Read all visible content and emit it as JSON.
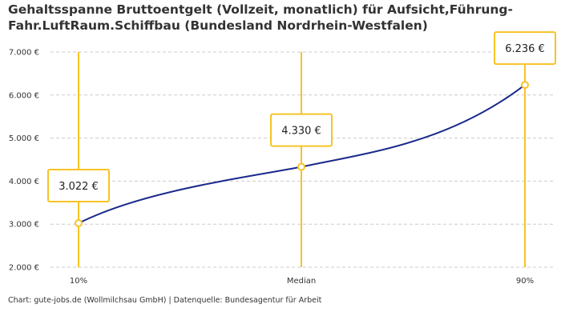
{
  "title": "Gehaltsspanne Bruttoentgelt (Vollzeit, monatlich) für Aufsicht,Führung-Fahr.LuftRaum.Schiffbau (Bundesland Nordrhein-Westfalen)",
  "footer": "Chart: gute-jobs.de (Wollmilchsau GmbH) | Datenquelle: Bundesagentur für Arbeit",
  "chart_data": {
    "type": "line",
    "title": "Gehaltsspanne Bruttoentgelt (Vollzeit, monatlich) für Aufsicht,Führung-Fahr.LuftRaum.Schiffbau (Bundesland Nordrhein-Westfalen)",
    "categories": [
      "10%",
      "Median",
      "90%"
    ],
    "values": [
      3022,
      4330,
      6236
    ],
    "data_labels": [
      "3.022 €",
      "4.330 €",
      "6.236 €"
    ],
    "ylim": [
      2000,
      7000
    ],
    "yticks": [
      2000,
      3000,
      4000,
      5000,
      6000,
      7000
    ],
    "ytick_labels": [
      "2.000 €",
      "3.000 €",
      "4.000 €",
      "5.000 €",
      "6.000 €",
      "7.000 €"
    ],
    "grid": true,
    "smooth": true,
    "colors": {
      "line": "#1a2a8c",
      "marker": "#f7c325",
      "grid": "#cccccc"
    }
  }
}
